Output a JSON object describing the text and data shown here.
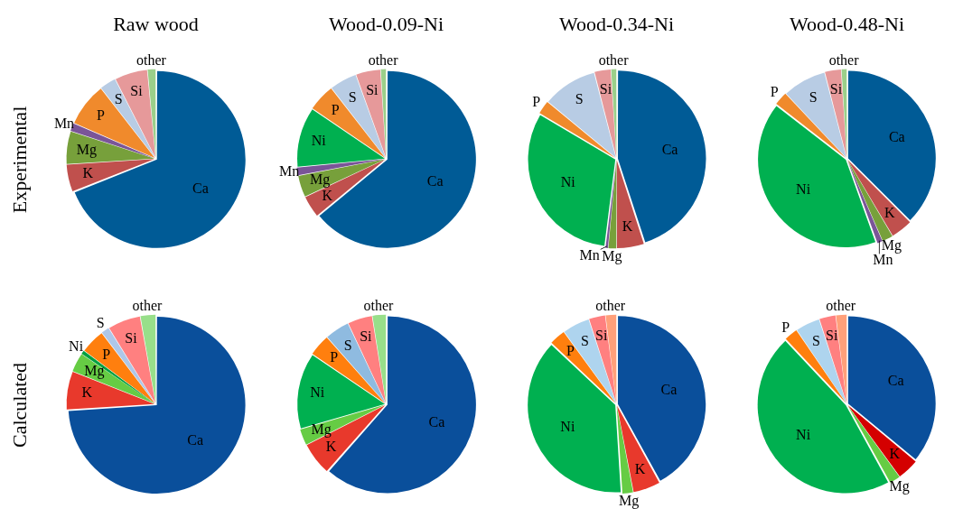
{
  "chart_data": [
    {
      "type": "pie",
      "title": "Raw wood",
      "ylabel": "Experimental",
      "categories": [
        "Ca",
        "K",
        "Mg",
        "Mn",
        "P",
        "S",
        "Si",
        "other"
      ],
      "values": [
        69,
        5,
        6,
        1.5,
        8,
        3,
        6,
        1.5
      ],
      "colors": [
        "#005b96",
        "#c0504d",
        "#77a03b",
        "#7a5598",
        "#f08a2c",
        "#b8cce4",
        "#e6999a",
        "#9bcf8a"
      ]
    },
    {
      "type": "pie",
      "title": "Wood-0.09-Ni",
      "categories": [
        "Ca",
        "K",
        "Mg",
        "Mn",
        "Ni",
        "P",
        "S",
        "Si",
        "other"
      ],
      "values": [
        64,
        4,
        4,
        1.5,
        11,
        5,
        5,
        4.5,
        1
      ],
      "colors": [
        "#005b96",
        "#c0504d",
        "#77a03b",
        "#7a5598",
        "#00b050",
        "#f08a2c",
        "#b8cce4",
        "#e6999a",
        "#9bcf8a"
      ]
    },
    {
      "type": "pie",
      "title": "Wood-0.34-Ni",
      "categories": [
        "Ca",
        "K",
        "Mg",
        "Mn",
        "Ni",
        "P",
        "S",
        "Si",
        "other"
      ],
      "values": [
        45,
        5,
        1.5,
        0.5,
        31.5,
        2.5,
        10,
        3,
        1
      ],
      "colors": [
        "#005b96",
        "#c0504d",
        "#77a03b",
        "#7a5598",
        "#00b050",
        "#f08a2c",
        "#b8cce4",
        "#e6999a",
        "#9bcf8a"
      ]
    },
    {
      "type": "pie",
      "title": "Wood-0.48-Ni",
      "categories": [
        "Ca",
        "K",
        "Mg",
        "Mn",
        "Ni",
        "P",
        "S",
        "Si",
        "other"
      ],
      "values": [
        37.5,
        4,
        2,
        1,
        41,
        2.5,
        8,
        3,
        1
      ],
      "colors": [
        "#005b96",
        "#c0504d",
        "#77a03b",
        "#7a5598",
        "#00b050",
        "#f08a2c",
        "#b8cce4",
        "#e6999a",
        "#9bcf8a"
      ]
    },
    {
      "type": "pie",
      "ylabel": "Calculated",
      "categories": [
        "Ca",
        "K",
        "Mg",
        "Ni",
        "P",
        "S",
        "Si",
        "other"
      ],
      "values": [
        74,
        7,
        3.5,
        0.7,
        4.5,
        1.5,
        6,
        2.8
      ],
      "colors": [
        "#0a4f9b",
        "#e8392c",
        "#66cc44",
        "#00a040",
        "#ff7f0e",
        "#aec7e8",
        "#ff8080",
        "#98df8a"
      ]
    },
    {
      "type": "pie",
      "categories": [
        "Ca",
        "K",
        "Mg",
        "Ni",
        "P",
        "S",
        "Si",
        "other"
      ],
      "values": [
        61.5,
        6,
        3,
        14,
        4,
        4.5,
        4.5,
        2.5
      ],
      "colors": [
        "#0a4f9b",
        "#e8392c",
        "#66cc44",
        "#00b050",
        "#ff7f0e",
        "#8fbbe0",
        "#ff8080",
        "#98df8a"
      ]
    },
    {
      "type": "pie",
      "categories": [
        "Ca",
        "K",
        "Mg",
        "Ni",
        "P",
        "S",
        "Si",
        "other"
      ],
      "values": [
        42,
        5,
        2,
        38,
        3,
        5,
        3,
        2
      ],
      "colors": [
        "#0a4f9b",
        "#e8392c",
        "#66cc44",
        "#00b050",
        "#ff7f0e",
        "#aed4ee",
        "#ff8080",
        "#ffa07a"
      ]
    },
    {
      "type": "pie",
      "categories": [
        "Ca",
        "K",
        "Mg",
        "Ni",
        "P",
        "S",
        "Si",
        "other"
      ],
      "values": [
        36,
        4,
        2,
        46,
        2.5,
        4.5,
        3,
        2
      ],
      "colors": [
        "#0a4f9b",
        "#d40000",
        "#66cc44",
        "#00b050",
        "#ff7f0e",
        "#aed4ee",
        "#ff8080",
        "#ffa07a"
      ]
    }
  ]
}
